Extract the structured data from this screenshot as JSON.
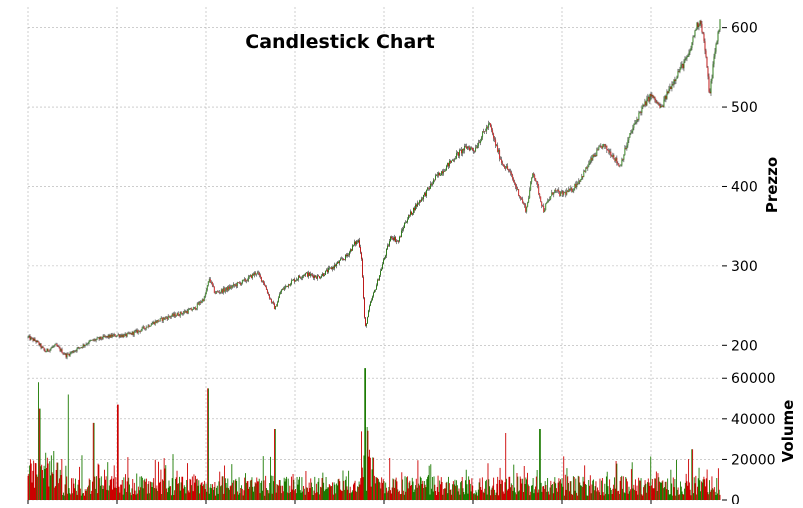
{
  "chart_data": {
    "type": "candlestick",
    "title": "Candlestick Chart",
    "price_panel": {
      "ylabel": "Prezzo",
      "ylim": [
        184,
        626
      ],
      "yticks": [
        200,
        300,
        400,
        500,
        600
      ],
      "grid": true,
      "axis_side": "right",
      "anchors": [
        [
          0.0,
          210
        ],
        [
          0.012,
          205
        ],
        [
          0.025,
          192
        ],
        [
          0.04,
          200
        ],
        [
          0.055,
          187
        ],
        [
          0.07,
          195
        ],
        [
          0.09,
          205
        ],
        [
          0.11,
          210
        ],
        [
          0.13,
          213
        ],
        [
          0.14,
          212
        ],
        [
          0.16,
          218
        ],
        [
          0.18,
          228
        ],
        [
          0.2,
          235
        ],
        [
          0.22,
          240
        ],
        [
          0.24,
          246
        ],
        [
          0.255,
          260
        ],
        [
          0.262,
          284
        ],
        [
          0.27,
          266
        ],
        [
          0.285,
          270
        ],
        [
          0.3,
          276
        ],
        [
          0.315,
          282
        ],
        [
          0.33,
          292
        ],
        [
          0.34,
          280
        ],
        [
          0.35,
          258
        ],
        [
          0.357,
          246
        ],
        [
          0.365,
          268
        ],
        [
          0.38,
          280
        ],
        [
          0.4,
          290
        ],
        [
          0.42,
          286
        ],
        [
          0.44,
          298
        ],
        [
          0.46,
          312
        ],
        [
          0.472,
          328
        ],
        [
          0.478,
          332
        ],
        [
          0.482,
          310
        ],
        [
          0.487,
          220
        ],
        [
          0.494,
          250
        ],
        [
          0.505,
          280
        ],
        [
          0.515,
          310
        ],
        [
          0.525,
          338
        ],
        [
          0.535,
          330
        ],
        [
          0.545,
          355
        ],
        [
          0.56,
          375
        ],
        [
          0.575,
          392
        ],
        [
          0.59,
          412
        ],
        [
          0.605,
          425
        ],
        [
          0.62,
          440
        ],
        [
          0.635,
          450
        ],
        [
          0.645,
          446
        ],
        [
          0.66,
          470
        ],
        [
          0.667,
          478
        ],
        [
          0.675,
          455
        ],
        [
          0.685,
          430
        ],
        [
          0.695,
          420
        ],
        [
          0.71,
          390
        ],
        [
          0.72,
          370
        ],
        [
          0.73,
          420
        ],
        [
          0.745,
          370
        ],
        [
          0.76,
          395
        ],
        [
          0.77,
          390
        ],
        [
          0.785,
          395
        ],
        [
          0.8,
          412
        ],
        [
          0.815,
          435
        ],
        [
          0.83,
          452
        ],
        [
          0.845,
          440
        ],
        [
          0.855,
          425
        ],
        [
          0.87,
          465
        ],
        [
          0.885,
          495
        ],
        [
          0.9,
          515
        ],
        [
          0.915,
          498
        ],
        [
          0.925,
          520
        ],
        [
          0.94,
          545
        ],
        [
          0.955,
          565
        ],
        [
          0.965,
          600
        ],
        [
          0.972,
          610
        ],
        [
          0.978,
          575
        ],
        [
          0.985,
          515
        ],
        [
          0.991,
          560
        ],
        [
          1.0,
          608
        ]
      ]
    },
    "volume_panel": {
      "ylabel": "Volume",
      "ylim": [
        0,
        68000
      ],
      "yticks": [
        0,
        20000,
        40000,
        60000
      ],
      "grid": true,
      "axis_side": "right",
      "base_level": 7000,
      "spikes": [
        [
          0.015,
          58000
        ],
        [
          0.017,
          45000
        ],
        [
          0.058,
          52000
        ],
        [
          0.095,
          38000
        ],
        [
          0.13,
          47000
        ],
        [
          0.26,
          55000
        ],
        [
          0.357,
          35000
        ],
        [
          0.487,
          65000
        ],
        [
          0.49,
          36000
        ],
        [
          0.69,
          33000
        ],
        [
          0.74,
          35000
        ],
        [
          0.96,
          25000
        ]
      ]
    },
    "up_color": "#1a7a00",
    "down_color": "#cc0000",
    "wick_color": "#333333",
    "grid_color": "#b0b0b0"
  }
}
